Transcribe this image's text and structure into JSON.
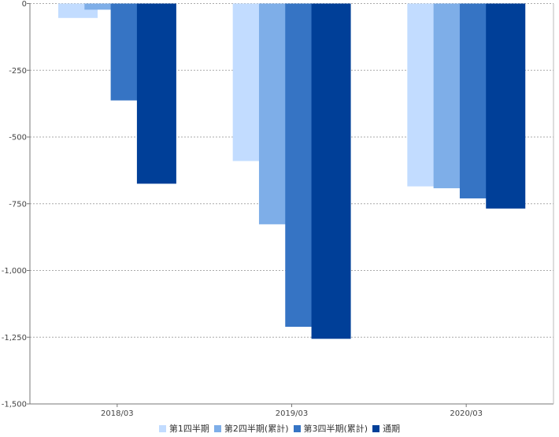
{
  "chart_data": {
    "type": "bar",
    "categories": [
      "2018/03",
      "2019/03",
      "2020/03"
    ],
    "series": [
      {
        "name": "第1四半期",
        "color": "#c2dcff",
        "values": [
          -54,
          -590,
          -685
        ]
      },
      {
        "name": "第2四半期(累計)",
        "color": "#7eaee8",
        "values": [
          -23,
          -827,
          -692
        ]
      },
      {
        "name": "第3四半期(累計)",
        "color": "#3674c4",
        "values": [
          -363,
          -1211,
          -730
        ]
      },
      {
        "name": "通期",
        "color": "#003f98",
        "values": [
          -675,
          -1256,
          -768
        ]
      }
    ],
    "ylim": [
      -1500,
      0
    ],
    "yticks": [
      0,
      -250,
      -500,
      -750,
      -1000,
      -1250,
      -1500
    ],
    "ytick_labels": [
      "0",
      "-250",
      "-500",
      "-750",
      "-1,000",
      "-1,250",
      "-1,500"
    ],
    "grid": true,
    "legend": "bottom"
  }
}
